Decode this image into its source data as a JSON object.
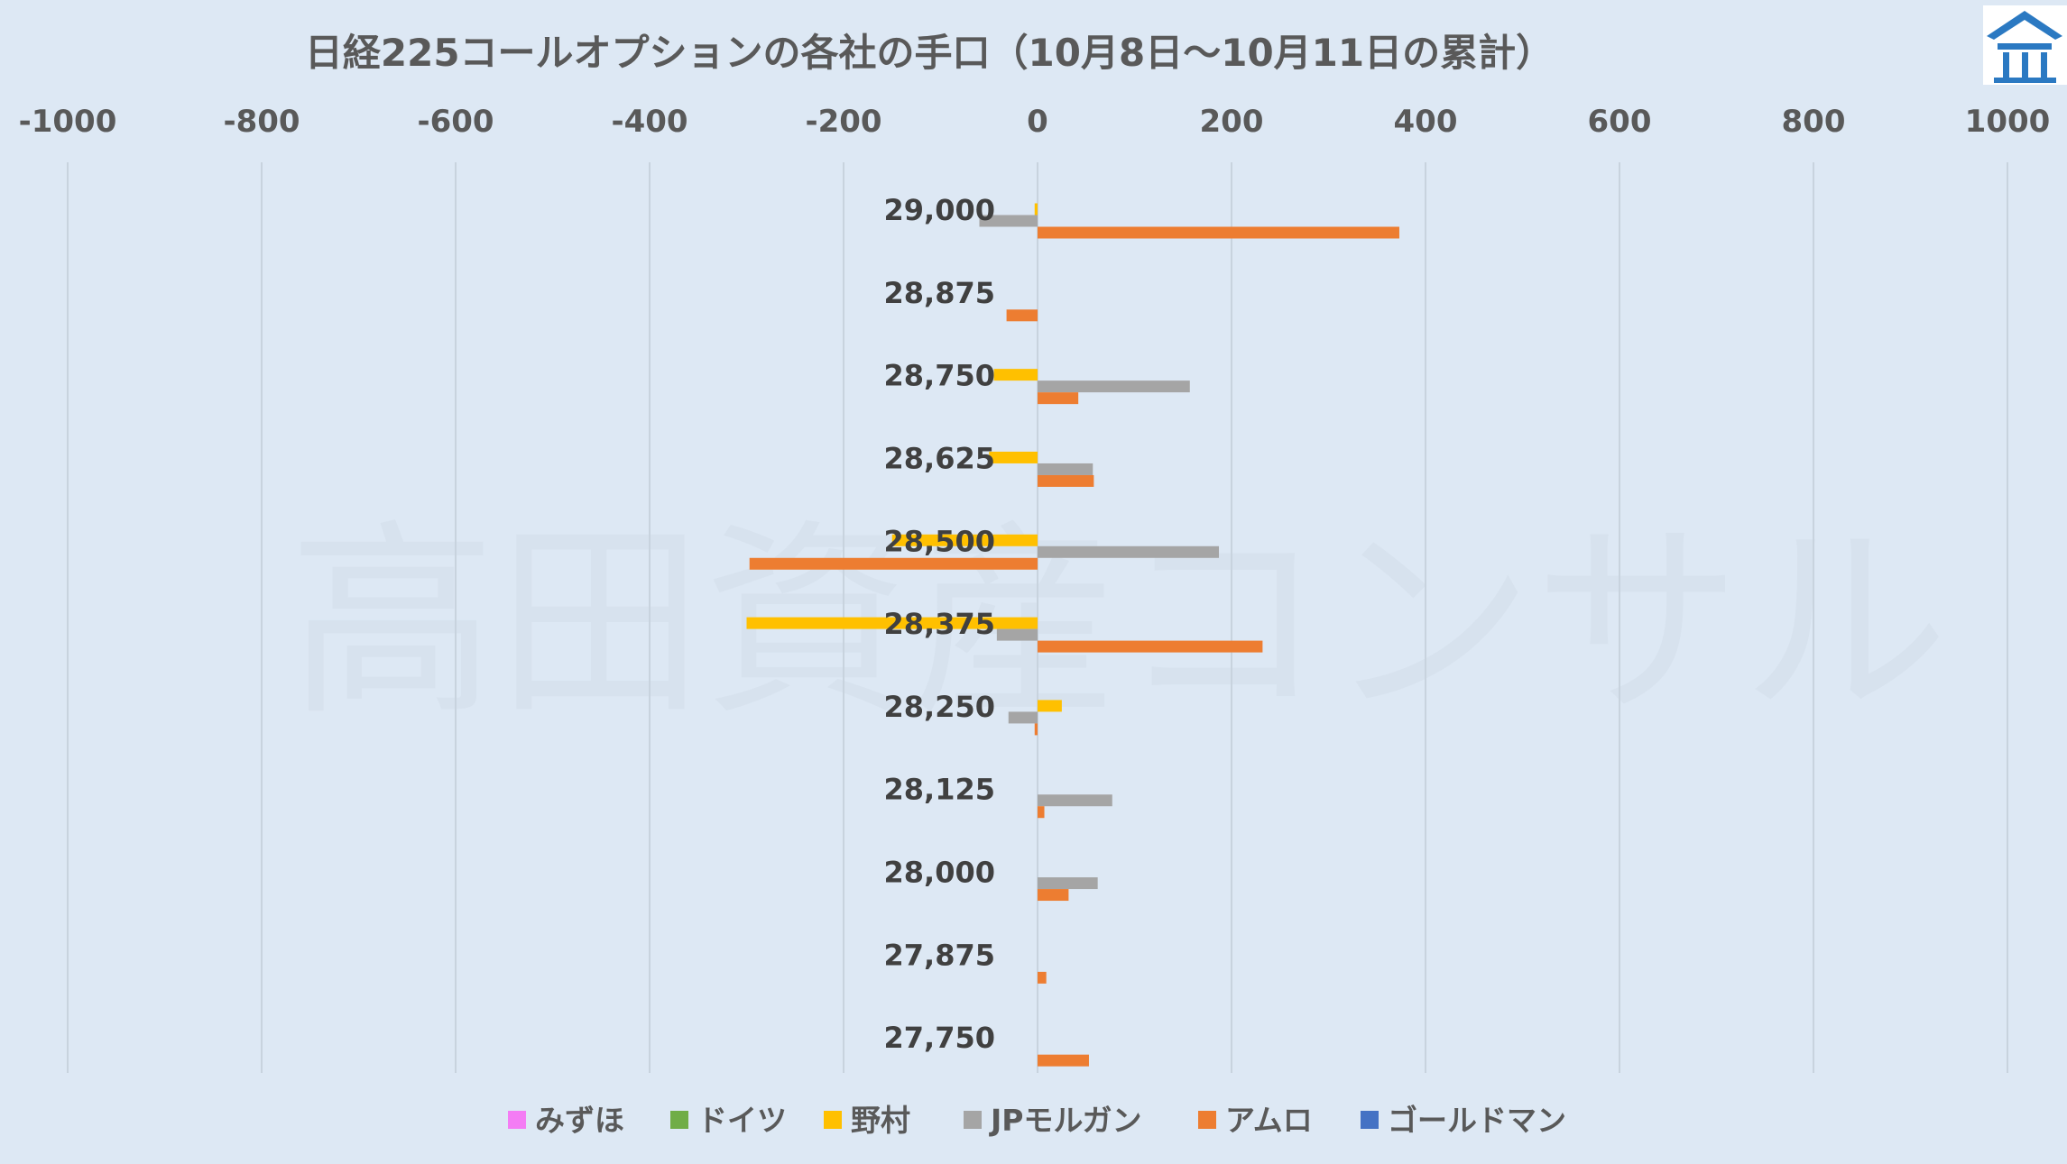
{
  "chart_data": {
    "type": "bar",
    "orientation": "horizontal",
    "title": "日経225コールオプションの各社の手口（10月8日～10月11日の累計）",
    "xlim": [
      -1000,
      1000
    ],
    "xticks": [
      -1000,
      -800,
      -600,
      -400,
      -200,
      0,
      200,
      400,
      600,
      800,
      1000
    ],
    "x_tick_labels": [
      "-1000",
      "-800",
      "-600",
      "-400",
      "-200",
      "0",
      "200",
      "400",
      "600",
      "800",
      "1000"
    ],
    "x_axis_position": "top",
    "grid": "vertical",
    "legend_position": "bottom",
    "categories": [
      "29,000",
      "28,875",
      "28,750",
      "28,625",
      "28,500",
      "28,375",
      "28,250",
      "28,125",
      "28,000",
      "27,875",
      "27,750"
    ],
    "series": [
      {
        "name": "みずほ",
        "color": "#f47cf4",
        "values": [
          0,
          0,
          0,
          0,
          0,
          0,
          0,
          0,
          0,
          0,
          0
        ]
      },
      {
        "name": "ドイツ",
        "color": "#70ad47",
        "values": [
          0,
          0,
          0,
          0,
          0,
          0,
          0,
          0,
          0,
          0,
          0
        ]
      },
      {
        "name": "野村",
        "color": "#ffc000",
        "values": [
          -3,
          0,
          -45,
          -50,
          -150,
          -300,
          25,
          0,
          0,
          0,
          0
        ]
      },
      {
        "name": "JPモルガン",
        "color": "#a5a5a5",
        "values": [
          -60,
          0,
          157,
          57,
          187,
          -42,
          -30,
          77,
          62,
          0,
          0
        ]
      },
      {
        "name": "アムロ",
        "color": "#ed7d31",
        "values": [
          373,
          -32,
          42,
          58,
          -297,
          232,
          -3,
          7,
          32,
          9,
          53
        ]
      },
      {
        "name": "ゴールドマン",
        "color": "#4472c4",
        "values": [
          0,
          0,
          0,
          0,
          0,
          0,
          0,
          0,
          0,
          0,
          0
        ]
      }
    ]
  },
  "watermark_text": "高田資産コンサル",
  "logo": {
    "icon": "pavilion-icon",
    "color": "#2b79c2"
  }
}
